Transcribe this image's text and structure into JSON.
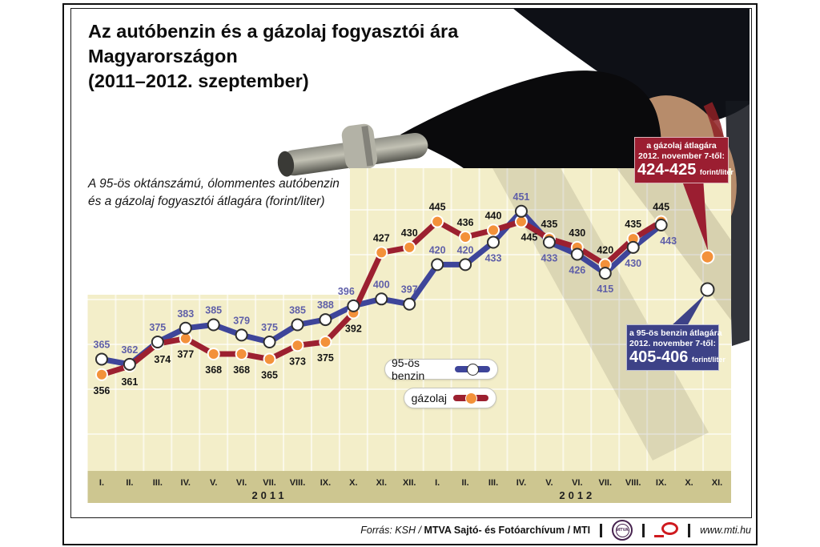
{
  "page": {
    "title_lines": [
      "Az autóbenzin és a gázolaj fogyasztói ára",
      "Magyarországon",
      "(2011–2012. szeptember)"
    ],
    "subtitle_lines": [
      "A 95-ös oktánszámú, ólommentes autóbenzin",
      "és a gázolaj fogyasztói átlagára (forint/liter)"
    ]
  },
  "chart_data": {
    "type": "line",
    "unit": "forint/liter",
    "ylim": [
      300,
      476
    ],
    "grid": true,
    "years": [
      {
        "label": "2011",
        "months": [
          "I.",
          "II.",
          "III.",
          "IV.",
          "V.",
          "VI.",
          "VII.",
          "VIII.",
          "IX.",
          "X.",
          "XI.",
          "XII."
        ]
      },
      {
        "label": "2012",
        "months": [
          "I.",
          "II.",
          "III.",
          "IV.",
          "V.",
          "VI.",
          "VII.",
          "VIII.",
          "IX.",
          "X.",
          "XI."
        ]
      }
    ],
    "series": [
      {
        "name": "95-ös benzin",
        "color": "#3e459a",
        "marker_fill": "#ffffff",
        "marker_stroke": "#2f2f2f",
        "label_color": "#5f5fa8",
        "values": [
          365,
          362,
          375,
          383,
          385,
          379,
          375,
          385,
          388,
          396,
          400,
          397,
          420,
          420,
          433,
          451,
          433,
          426,
          415,
          430,
          443
        ],
        "label_sides": [
          "a",
          "a",
          "a",
          "a",
          "a",
          "a",
          "a",
          "a",
          "a",
          "a",
          "a",
          "a",
          "a",
          "a",
          "b",
          "a",
          "b",
          "b",
          "b",
          "b",
          "b"
        ]
      },
      {
        "name": "gázolaj",
        "color": "#9c2030",
        "marker_fill": "#f3913a",
        "marker_stroke": "#ffffff",
        "label_color": "#141414",
        "values": [
          356,
          361,
          374,
          377,
          368,
          368,
          365,
          373,
          375,
          392,
          427,
          430,
          445,
          436,
          440,
          445,
          435,
          430,
          420,
          435,
          445
        ],
        "label_sides": [
          "b",
          "b",
          "b",
          "b",
          "b",
          "b",
          "b",
          "b",
          "b",
          "b",
          "a",
          "a",
          "a",
          "a",
          "a",
          "b",
          "a",
          "a",
          "a",
          "a",
          "a"
        ]
      }
    ],
    "extra_points": [
      {
        "series": 1,
        "range": [
          424,
          425
        ]
      },
      {
        "series": 0,
        "range": [
          405,
          406
        ]
      }
    ]
  },
  "callouts": {
    "gazolaj": {
      "line1": "a gázolaj átlagára",
      "line2": "2012. november 7-től:",
      "value": "424-425",
      "unit": "forint/liter",
      "bg": "#9b1e31"
    },
    "benzin": {
      "line1": "a 95-ös benzin átlagára",
      "line2": "2012. november 7-től:",
      "value": "405-406",
      "unit": "forint/liter",
      "bg": "#3d4287"
    }
  },
  "footer": {
    "source_prefix": "Forrás: KSH /",
    "source_bold": "MTVA Sajtó- és Fotóarchívum / MTI",
    "website": "www.mti.hu",
    "logo1": "MTVA"
  }
}
